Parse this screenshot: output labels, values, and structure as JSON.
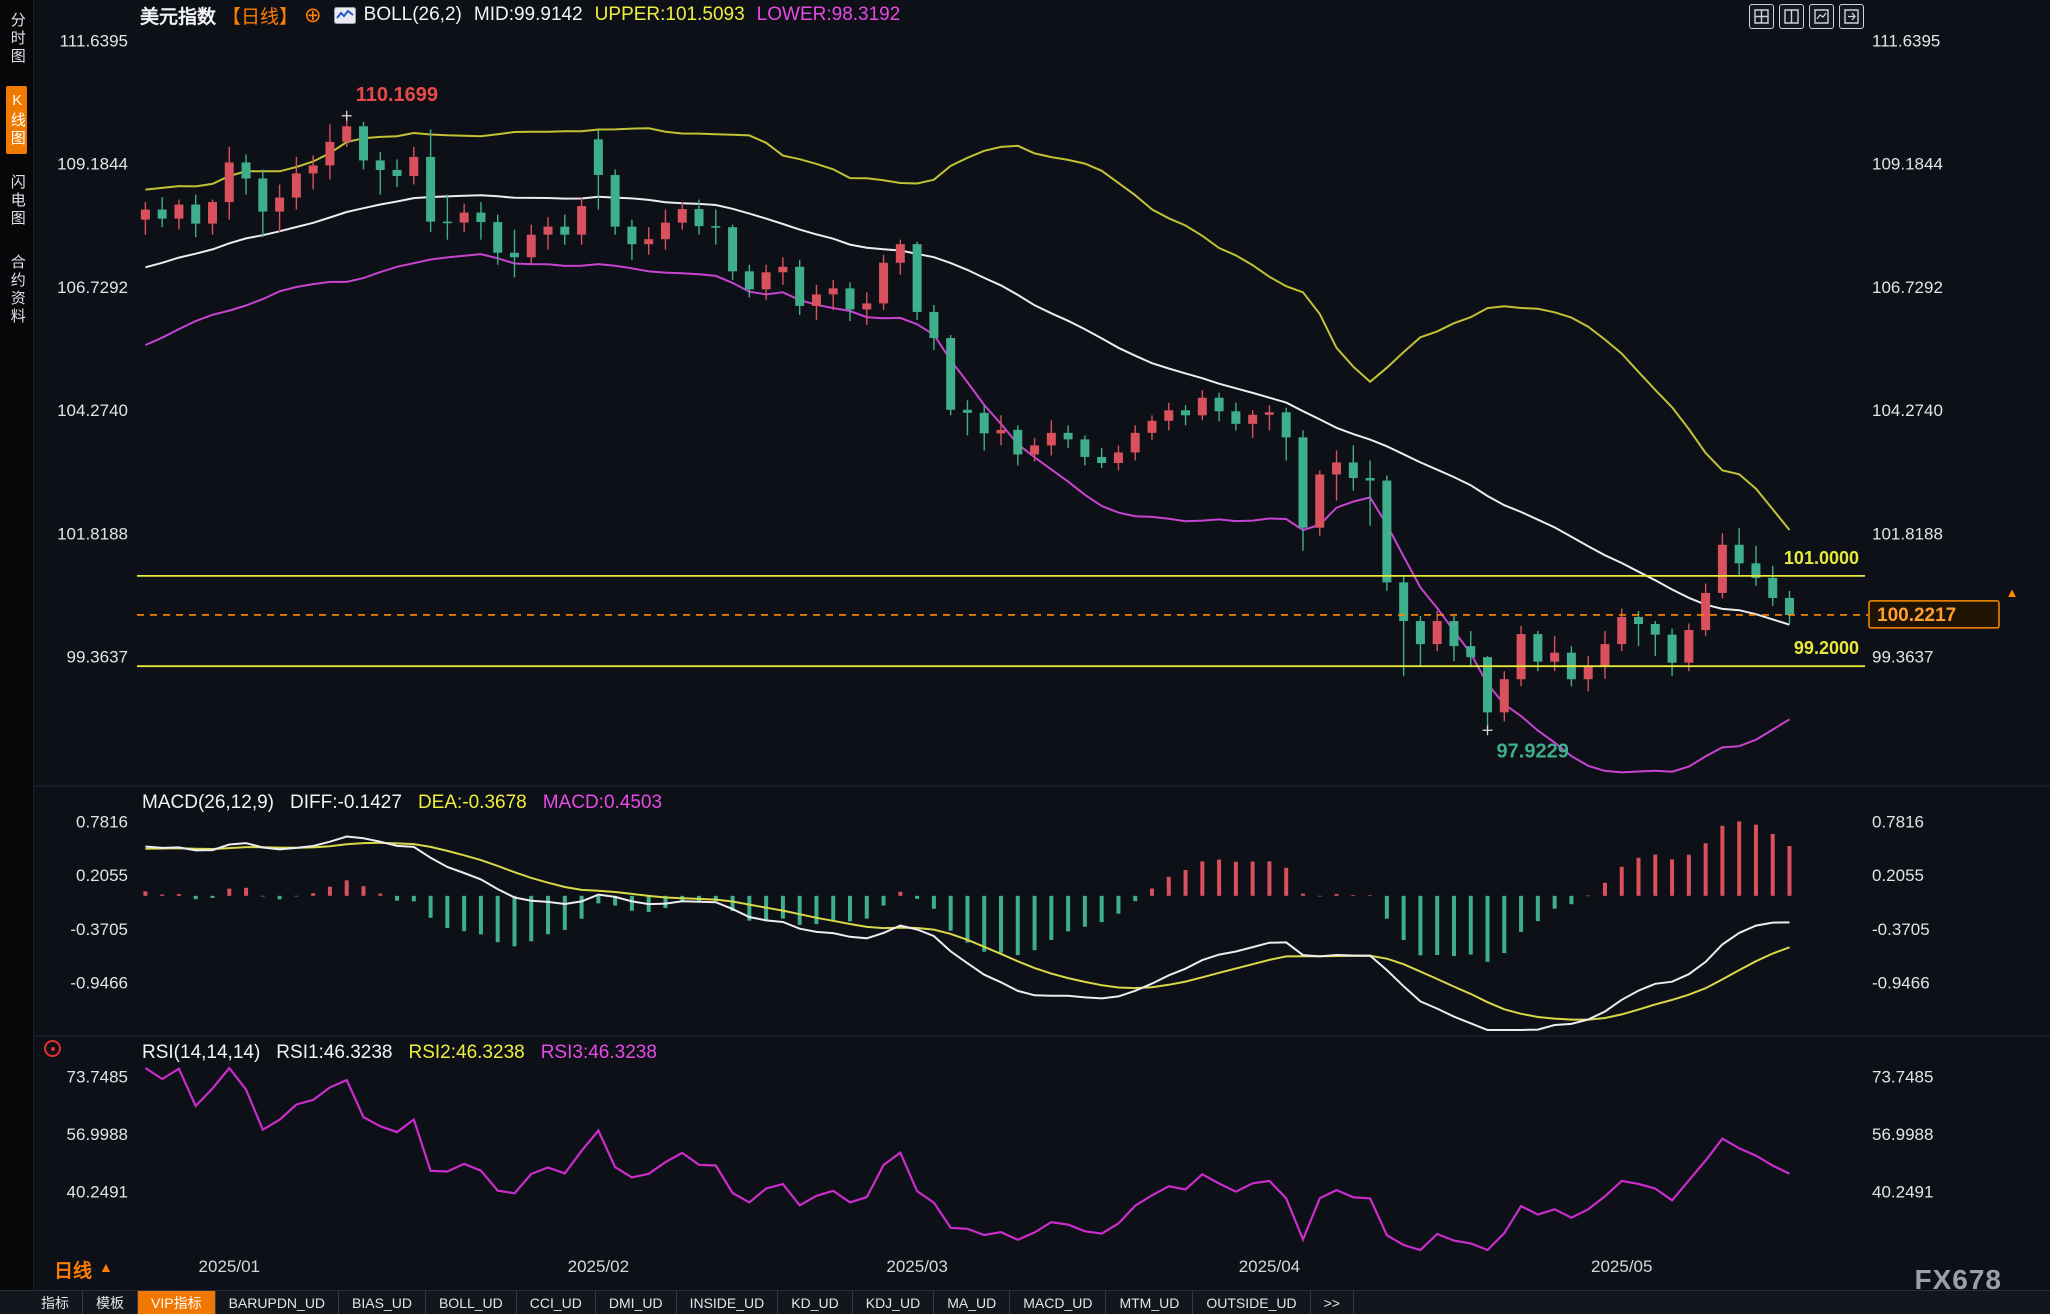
{
  "header": {
    "symbol": "美元指数",
    "period_tag": "【日线】",
    "add_icon": "⊕",
    "boll_label": "BOLL(26,2)",
    "mid_label": "MID:99.9142",
    "upper_label": "UPPER:101.5093",
    "lower_label": "LOWER:98.3192"
  },
  "sidebar": {
    "items": [
      {
        "label": "分时图"
      },
      {
        "label": "K线图"
      },
      {
        "label": "闪电图"
      },
      {
        "label": "合约资料"
      }
    ]
  },
  "footer": {
    "period_label": "日线",
    "period_arrow": "▲",
    "watermark": "FX678",
    "tabs": [
      {
        "label": "指标"
      },
      {
        "label": "模板"
      },
      {
        "label": "VIP指标"
      },
      {
        "label": "BARUPDN_UD"
      },
      {
        "label": "BIAS_UD"
      },
      {
        "label": "BOLL_UD"
      },
      {
        "label": "CCI_UD"
      },
      {
        "label": "DMI_UD"
      },
      {
        "label": "INSIDE_UD"
      },
      {
        "label": "KD_UD"
      },
      {
        "label": "KDJ_UD"
      },
      {
        "label": "MA_UD"
      },
      {
        "label": "MACD_UD"
      },
      {
        "label": "MTM_UD"
      },
      {
        "label": "OUTSIDE_UD"
      },
      {
        "label": ">>"
      }
    ]
  },
  "chart_data": {
    "type": "candlestick",
    "title": "美元指数 日线 (US Dollar Index, daily)",
    "price_ticks": [
      "111.6395",
      "109.1844",
      "106.7292",
      "104.2740",
      "101.8188",
      "99.3637"
    ],
    "price_domain": [
      96.872,
      111.879
    ],
    "month_ticks": [
      {
        "i": 5,
        "label": "2025/01"
      },
      {
        "i": 27,
        "label": "2025/02"
      },
      {
        "i": 46,
        "label": "2025/03"
      },
      {
        "i": 67,
        "label": "2025/04"
      },
      {
        "i": 88,
        "label": "2025/05"
      }
    ],
    "hlines": [
      {
        "value": 101.0,
        "label": "101.0000",
        "color": "#e8e83a"
      },
      {
        "value": 99.2,
        "label": "99.2000",
        "color": "#e8e83a"
      }
    ],
    "last_price": {
      "value": 100.2217,
      "label": "100.2217",
      "marker": "▲"
    },
    "annotations": [
      {
        "index": 12,
        "value": 110.1699,
        "label": "110.1699",
        "color": "#e84a4a",
        "pos": "above"
      },
      {
        "index": 80,
        "value": 97.9229,
        "label": "97.9229",
        "color": "#3fae8b",
        "pos": "below"
      }
    ],
    "boll": {
      "period": 26,
      "mult": 2
    },
    "macd": {
      "params": "MACD(26,12,9)",
      "diff_label": "DIFF:-0.1427",
      "dea_label": "DEA:-0.3678",
      "macd_label": "MACD:0.4503",
      "ticks": [
        "0.7816",
        "0.2055",
        "-0.3705",
        "-0.9466"
      ],
      "domain": [
        -1.4403,
        0.8675
      ],
      "fast": 12,
      "slow": 26,
      "signal": 9
    },
    "rsi": {
      "params": "RSI(14,14,14)",
      "rsi1_label": "RSI1:46.3238",
      "rsi2_label": "RSI2:46.3238",
      "rsi3_label": "RSI3:46.3238",
      "ticks": [
        "73.7485",
        "56.9988",
        "40.2491"
      ],
      "domain": [
        23.65,
        76.66
      ],
      "period": 14
    },
    "colors": {
      "up": "#d8515c",
      "down": "#3fae8b",
      "boll_upper": "#c2c234",
      "boll_mid": "#ececf2",
      "boll_lower": "#c844d0",
      "diff": "#ececf2",
      "dea": "#d8d848",
      "rsi": "#cc2ccc",
      "axis_text": "#e2e4ea",
      "month_text": "#d6d8de",
      "accent_orange": "#ff8a00"
    },
    "indicator_warmup_closes": [
      105.6,
      105.8,
      105.7,
      106.0,
      106.2,
      106.1,
      106.4,
      106.6,
      106.5,
      106.8,
      107.0,
      106.9,
      107.1,
      107.3,
      107.2,
      107.4,
      107.6,
      107.5,
      107.7,
      107.9,
      107.8,
      108.0,
      108.1,
      107.9,
      108.0,
      108.1
    ],
    "candles": [
      [
        108.1,
        108.45,
        107.8,
        108.3
      ],
      [
        108.3,
        108.55,
        107.95,
        108.12
      ],
      [
        108.12,
        108.5,
        107.9,
        108.4
      ],
      [
        108.4,
        108.6,
        107.75,
        108.02
      ],
      [
        108.02,
        108.5,
        107.8,
        108.45
      ],
      [
        108.45,
        109.55,
        108.1,
        109.24
      ],
      [
        109.24,
        109.4,
        108.6,
        108.92
      ],
      [
        108.92,
        109.1,
        107.75,
        108.26
      ],
      [
        108.26,
        108.8,
        107.85,
        108.54
      ],
      [
        108.54,
        109.35,
        108.3,
        109.02
      ],
      [
        109.02,
        109.38,
        108.7,
        109.18
      ],
      [
        109.18,
        110.0,
        108.9,
        109.65
      ],
      [
        109.65,
        110.17,
        109.55,
        109.96
      ],
      [
        109.96,
        110.05,
        109.1,
        109.28
      ],
      [
        109.28,
        109.45,
        108.6,
        109.09
      ],
      [
        109.09,
        109.3,
        108.75,
        108.97
      ],
      [
        108.97,
        109.55,
        108.8,
        109.35
      ],
      [
        109.35,
        109.9,
        107.85,
        108.06
      ],
      [
        108.06,
        108.6,
        107.7,
        108.04
      ],
      [
        108.04,
        108.42,
        107.85,
        108.24
      ],
      [
        108.24,
        108.45,
        107.7,
        108.05
      ],
      [
        108.05,
        108.2,
        107.2,
        107.44
      ],
      [
        107.44,
        107.9,
        106.95,
        107.35
      ],
      [
        107.35,
        108.0,
        107.2,
        107.8
      ],
      [
        107.8,
        108.15,
        107.5,
        107.96
      ],
      [
        107.96,
        108.2,
        107.6,
        107.8
      ],
      [
        107.8,
        108.55,
        107.6,
        108.37
      ],
      [
        109.7,
        109.88,
        108.3,
        108.99
      ],
      [
        108.99,
        109.1,
        107.8,
        107.96
      ],
      [
        107.96,
        108.1,
        107.3,
        107.61
      ],
      [
        107.61,
        107.95,
        107.4,
        107.71
      ],
      [
        107.71,
        108.3,
        107.5,
        108.04
      ],
      [
        108.04,
        108.45,
        107.9,
        108.31
      ],
      [
        108.31,
        108.5,
        107.8,
        107.97
      ],
      [
        107.97,
        108.3,
        107.6,
        107.95
      ],
      [
        107.95,
        108.0,
        106.9,
        107.07
      ],
      [
        107.07,
        107.2,
        106.55,
        106.71
      ],
      [
        106.71,
        107.2,
        106.5,
        107.05
      ],
      [
        107.05,
        107.35,
        106.8,
        107.16
      ],
      [
        107.16,
        107.3,
        106.2,
        106.38
      ],
      [
        106.38,
        106.8,
        106.1,
        106.61
      ],
      [
        106.61,
        106.9,
        106.3,
        106.73
      ],
      [
        106.73,
        106.85,
        106.08,
        106.31
      ],
      [
        106.31,
        106.65,
        106.0,
        106.43
      ],
      [
        106.43,
        107.4,
        106.3,
        107.24
      ],
      [
        107.24,
        107.7,
        107.0,
        107.61
      ],
      [
        107.61,
        107.66,
        106.1,
        106.26
      ],
      [
        106.26,
        106.4,
        105.5,
        105.74
      ],
      [
        105.74,
        105.8,
        104.2,
        104.31
      ],
      [
        104.31,
        104.5,
        103.8,
        104.25
      ],
      [
        104.25,
        104.4,
        103.5,
        103.84
      ],
      [
        103.84,
        104.2,
        103.6,
        103.91
      ],
      [
        103.91,
        104.0,
        103.2,
        103.42
      ],
      [
        103.42,
        103.75,
        103.28,
        103.6
      ],
      [
        103.6,
        104.1,
        103.4,
        103.85
      ],
      [
        103.85,
        104.0,
        103.55,
        103.72
      ],
      [
        103.72,
        103.8,
        103.2,
        103.37
      ],
      [
        103.37,
        103.55,
        103.15,
        103.25
      ],
      [
        103.25,
        103.6,
        103.1,
        103.46
      ],
      [
        103.46,
        104.0,
        103.3,
        103.85
      ],
      [
        103.85,
        104.2,
        103.7,
        104.09
      ],
      [
        104.09,
        104.45,
        103.9,
        104.3
      ],
      [
        104.3,
        104.4,
        104.0,
        104.2
      ],
      [
        104.2,
        104.7,
        104.1,
        104.55
      ],
      [
        104.55,
        104.65,
        104.08,
        104.28
      ],
      [
        104.28,
        104.45,
        103.9,
        104.03
      ],
      [
        104.03,
        104.3,
        103.75,
        104.21
      ],
      [
        104.21,
        104.4,
        103.9,
        104.26
      ],
      [
        104.26,
        104.35,
        103.3,
        103.76
      ],
      [
        103.76,
        103.9,
        101.5,
        101.96
      ],
      [
        101.96,
        103.1,
        101.8,
        103.02
      ],
      [
        103.02,
        103.5,
        102.5,
        103.26
      ],
      [
        103.26,
        103.6,
        102.7,
        102.95
      ],
      [
        102.95,
        103.3,
        102.0,
        102.9
      ],
      [
        102.9,
        103.0,
        100.7,
        100.87
      ],
      [
        100.87,
        101.0,
        99.0,
        100.1
      ],
      [
        100.1,
        100.2,
        99.2,
        99.64
      ],
      [
        99.64,
        100.3,
        99.5,
        100.1
      ],
      [
        100.1,
        100.2,
        99.3,
        99.6
      ],
      [
        99.6,
        99.9,
        99.2,
        99.38
      ],
      [
        99.38,
        99.4,
        97.92,
        98.28
      ],
      [
        98.28,
        99.1,
        98.1,
        98.94
      ],
      [
        98.94,
        100.0,
        98.8,
        99.84
      ],
      [
        99.84,
        99.9,
        99.1,
        99.29
      ],
      [
        99.29,
        99.8,
        99.1,
        99.47
      ],
      [
        99.47,
        99.6,
        98.8,
        98.94
      ],
      [
        98.94,
        99.4,
        98.7,
        99.21
      ],
      [
        99.21,
        99.9,
        98.95,
        99.64
      ],
      [
        99.64,
        100.35,
        99.5,
        100.18
      ],
      [
        100.18,
        100.3,
        99.6,
        100.04
      ],
      [
        100.04,
        100.1,
        99.4,
        99.83
      ],
      [
        99.83,
        99.95,
        99.0,
        99.27
      ],
      [
        99.27,
        100.05,
        99.1,
        99.92
      ],
      [
        99.92,
        100.85,
        99.8,
        100.66
      ],
      [
        100.66,
        101.85,
        100.55,
        101.62
      ],
      [
        101.62,
        101.95,
        101.0,
        101.25
      ],
      [
        101.25,
        101.6,
        100.8,
        100.96
      ],
      [
        100.96,
        101.2,
        100.4,
        100.56
      ],
      [
        100.56,
        100.7,
        100.05,
        100.22
      ]
    ]
  }
}
